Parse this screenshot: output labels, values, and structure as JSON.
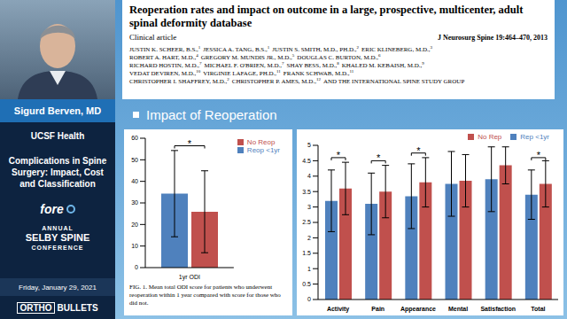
{
  "sidebar": {
    "speaker": "Sigurd Berven, MD",
    "affiliation": "UCSF Health",
    "talk_title": "Complications in Spine Surgery: Impact, Cost and Classification",
    "sponsor": "fore",
    "conference": [
      "ANNUAL",
      "SELBY SPINE",
      "CONFERENCE"
    ],
    "date": "Friday, January 29, 2021",
    "footer": [
      "ORTHO",
      "BULLETS"
    ]
  },
  "paper": {
    "title": "Reoperation rates and impact on outcome in a large, prospective, multicenter, adult spinal deformity database",
    "article_type": "Clinical article",
    "citation": "J Neurosurg Spine 19:464–470, 2013",
    "authors": [
      [
        {
          "text": "JUSTIN K. SCHEER, B.S.,",
          "sup": "1"
        },
        {
          "text": "JESSICA A. TANG, B.S.,",
          "sup": "1"
        },
        {
          "text": "JUSTIN S. SMITH, M.D., PH.D.,",
          "sup": "2"
        },
        {
          "text": "ERIC KLINEBERG, M.D.,",
          "sup": "3"
        }
      ],
      [
        {
          "text": "ROBERT A. HART, M.D.,",
          "sup": "4"
        },
        {
          "text": "GREGORY M. MUNDIS JR., M.D.,",
          "sup": "5"
        },
        {
          "text": "DOUGLAS C. BURTON, M.D.,",
          "sup": "6"
        }
      ],
      [
        {
          "text": "RICHARD HOSTIN, M.D.,",
          "sup": "7"
        },
        {
          "text": "MICHAEL F. O'BRIEN, M.D.,",
          "sup": "7"
        },
        {
          "text": "SHAY BESS, M.D.,",
          "sup": "8"
        },
        {
          "text": "KHALED M. KEBAISH, M.D.,",
          "sup": "9"
        }
      ],
      [
        {
          "text": "VEDAT DEVIREN, M.D.,",
          "sup": "10"
        },
        {
          "text": "VIRGINIE LAFAGE, PH.D.,",
          "sup": "11"
        },
        {
          "text": "FRANK SCHWAB, M.D.,",
          "sup": "11"
        }
      ],
      [
        {
          "text": "CHRISTOPHER I. SHAFFREY, M.D.,",
          "sup": "2"
        },
        {
          "text": "CHRISTOPHER P. AMES, M.D.,",
          "sup": "12"
        },
        {
          "text": "AND THE INTERNATIONAL SPINE STUDY GROUP"
        }
      ]
    ]
  },
  "slide": {
    "heading": "Impact of Reoperation"
  },
  "chart_data": [
    {
      "type": "bar",
      "categories": [
        "1yr ODI"
      ],
      "series": [
        {
          "name": "Reop <1yr",
          "color": "#4f81bd",
          "values": [
            34.3
          ],
          "errors": [
            20
          ]
        },
        {
          "name": "No Reop",
          "color": "#c0504d",
          "values": [
            25.9
          ],
          "errors": [
            19
          ]
        }
      ],
      "ylim": [
        0,
        60
      ],
      "yticks": [
        0,
        10,
        20,
        30,
        40,
        50,
        60
      ],
      "grid": false,
      "legend": "right",
      "annotations": [
        {
          "text": "*",
          "category": "1yr ODI",
          "y": 56.5
        }
      ],
      "caption": "FIG. 1. Mean total ODI score for patients who underwent reoperation within 1 year compared with score for those who did not."
    },
    {
      "type": "bar",
      "categories": [
        "Activity",
        "Pain",
        "Appearance",
        "Mental",
        "Satisfaction",
        "Total"
      ],
      "series": [
        {
          "name": "Rep <1yr",
          "color": "#4f81bd",
          "values": [
            3.2,
            3.1,
            3.35,
            3.75,
            3.9,
            3.4
          ],
          "errors": [
            1.0,
            1.0,
            1.05,
            1.05,
            1.05,
            0.8
          ]
        },
        {
          "name": "No Rep",
          "color": "#c0504d",
          "values": [
            3.6,
            3.5,
            3.8,
            3.85,
            4.35,
            3.75
          ],
          "errors": [
            0.85,
            0.85,
            0.8,
            0.85,
            0.6,
            0.75
          ]
        }
      ],
      "ylim": [
        0,
        5
      ],
      "yticks": [
        0,
        0.5,
        1,
        1.5,
        2,
        2.5,
        3,
        3.5,
        4,
        4.5,
        5
      ],
      "grid": false,
      "legend": "top",
      "annotations": [
        {
          "text": "*",
          "category": "Activity",
          "y": 4.6
        },
        {
          "text": "*",
          "category": "Pain",
          "y": 4.5
        },
        {
          "text": "*",
          "category": "Appearance",
          "y": 4.75
        },
        {
          "text": "*",
          "category": "Total",
          "y": 4.6
        }
      ]
    }
  ]
}
